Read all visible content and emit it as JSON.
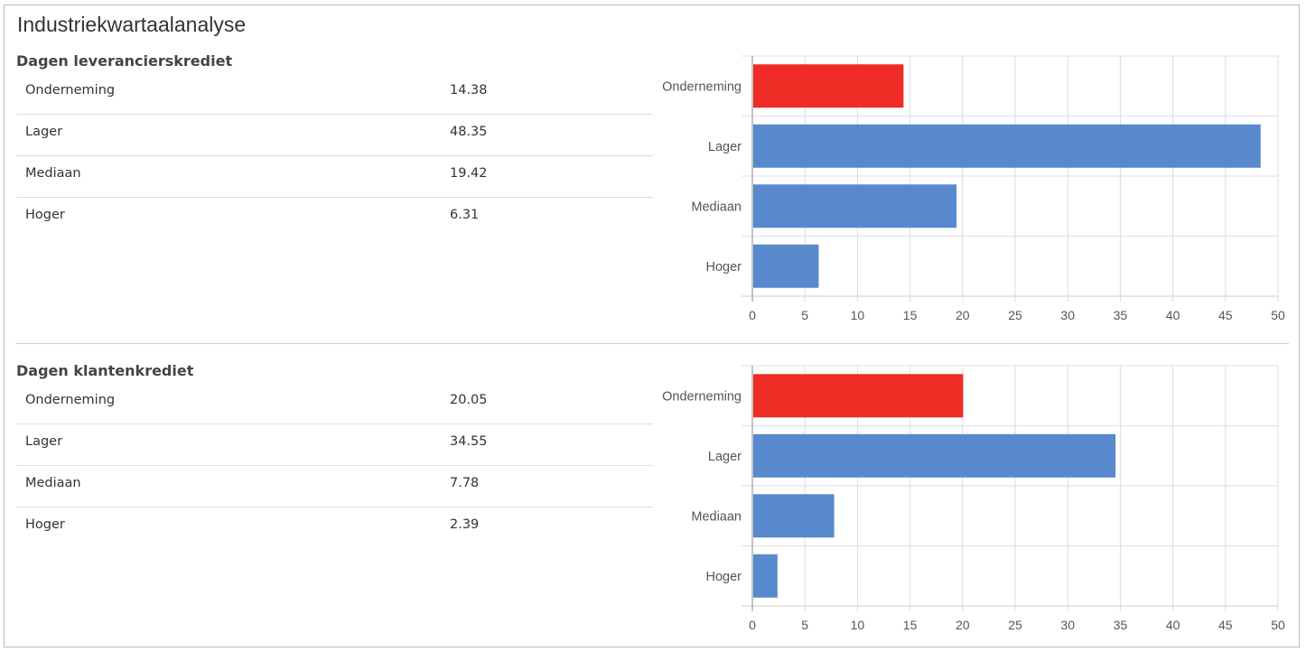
{
  "title": "Industriekwartaalanalyse",
  "colors": {
    "highlight": "#ee2b24",
    "bar": "#5889cc"
  },
  "sections": [
    {
      "heading": "Dagen leverancierskrediet",
      "rows": [
        {
          "label": "Onderneming",
          "value": "14.38"
        },
        {
          "label": "Lager",
          "value": "48.35"
        },
        {
          "label": "Mediaan",
          "value": "19.42"
        },
        {
          "label": "Hoger",
          "value": "6.31"
        }
      ]
    },
    {
      "heading": "Dagen klantenkrediet",
      "rows": [
        {
          "label": "Onderneming",
          "value": "20.05"
        },
        {
          "label": "Lager",
          "value": "34.55"
        },
        {
          "label": "Mediaan",
          "value": "7.78"
        },
        {
          "label": "Hoger",
          "value": "2.39"
        }
      ]
    }
  ],
  "chart_data": [
    {
      "type": "bar",
      "orientation": "horizontal",
      "categories": [
        "Onderneming",
        "Lager",
        "Mediaan",
        "Hoger"
      ],
      "values": [
        14.38,
        48.35,
        19.42,
        6.31
      ],
      "highlight_category": "Onderneming",
      "xlim": [
        0,
        50
      ],
      "xticks": [
        "0",
        "5",
        "10",
        "15",
        "20",
        "25",
        "30",
        "35",
        "40",
        "45",
        "50"
      ],
      "grid": true
    },
    {
      "type": "bar",
      "orientation": "horizontal",
      "categories": [
        "Onderneming",
        "Lager",
        "Mediaan",
        "Hoger"
      ],
      "values": [
        20.05,
        34.55,
        7.78,
        2.39
      ],
      "highlight_category": "Onderneming",
      "xlim": [
        0,
        50
      ],
      "xticks": [
        "0",
        "5",
        "10",
        "15",
        "20",
        "25",
        "30",
        "35",
        "40",
        "45",
        "50"
      ],
      "grid": true
    }
  ]
}
